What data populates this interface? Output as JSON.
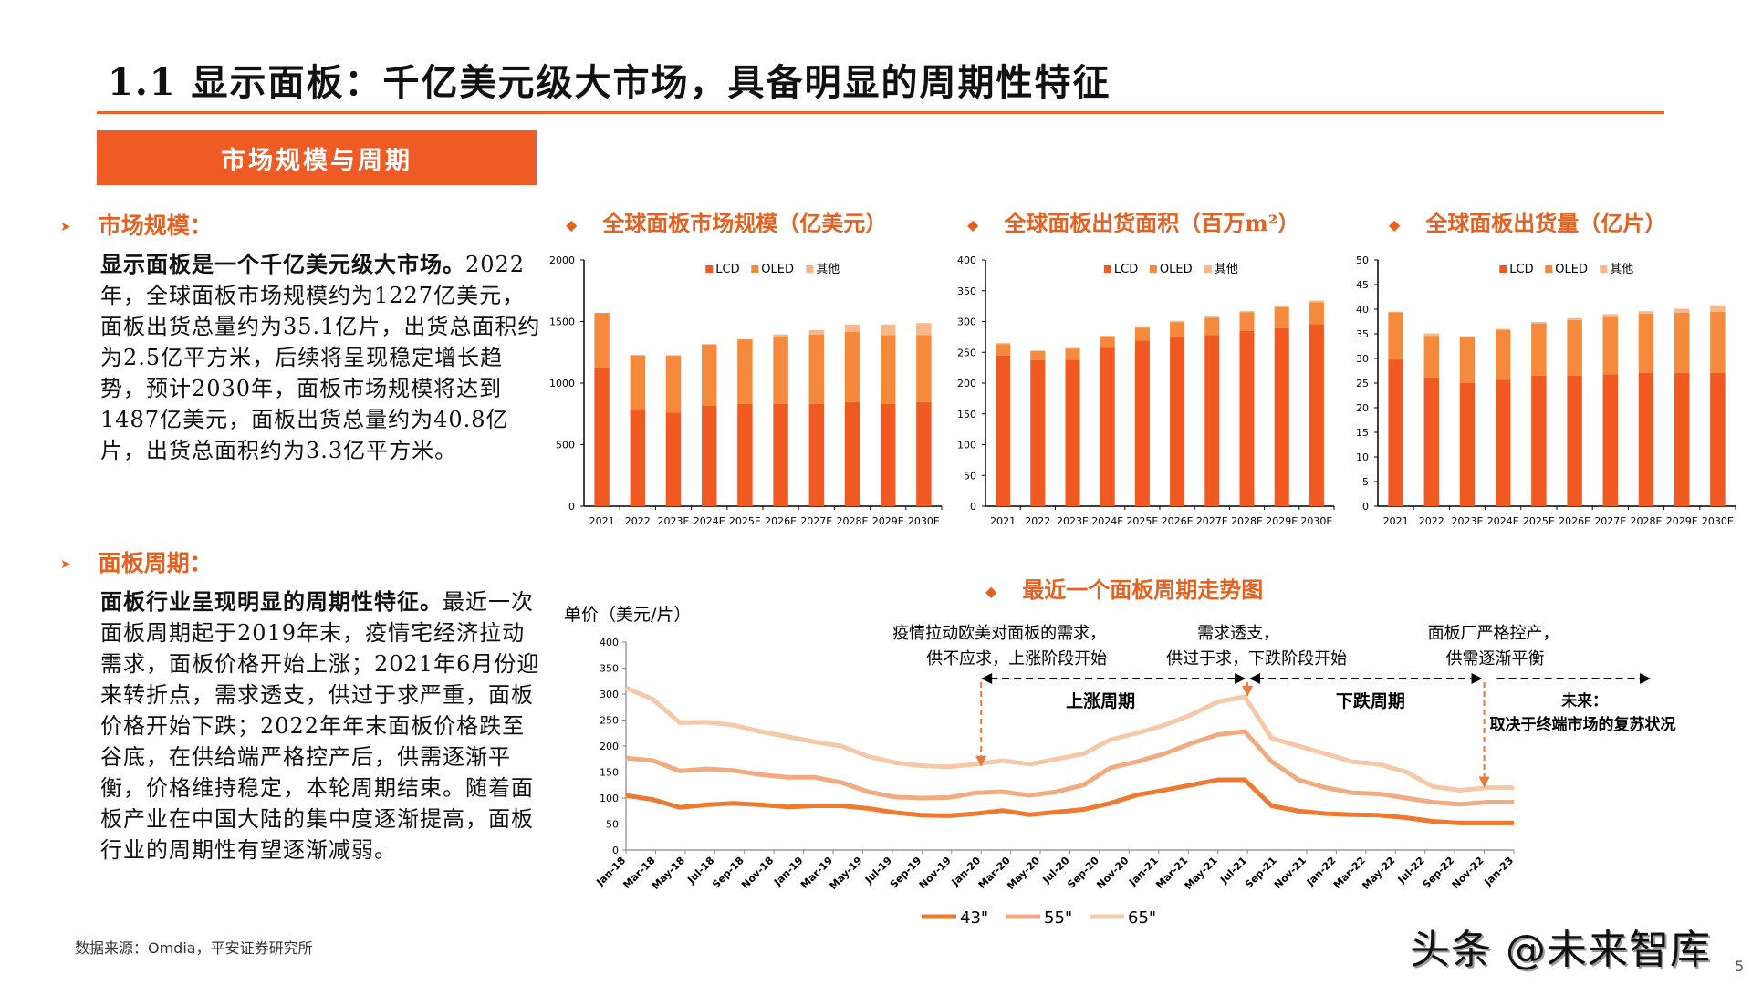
{
  "header": {
    "title": "1.1 显示面板：千亿美元级大市场，具备明显的周期性特征",
    "section_tab": "市场规模与周期"
  },
  "left": {
    "market": {
      "heading": "市场规模：",
      "bold": "显示面板是一个千亿美元级大市场。",
      "body": "2022年，全球面板市场规模约为1227亿美元，面板出货总量约为35.1亿片，出货总面积约为2.5亿平方米，后续将呈现稳定增长趋势，预计2030年，面板市场规模将达到1487亿美元，面板出货总量约为40.8亿片，出货总面积约为3.3亿平方米。"
    },
    "cycle": {
      "heading": "面板周期：",
      "bold": "面板行业呈现明显的周期性特征。",
      "body": "最近一次面板周期起于2019年末，疫情宅经济拉动需求，面板价格开始上涨；2021年6月份迎来转折点，需求透支，供过于求严重，面板价格开始下跌；2022年年末面板价格跌至谷底，在供给端严格控产后，供需逐渐平衡，价格维持稳定，本轮周期结束。随着面板产业在中国大陆的集中度逐渐提高，面板行业的周期性有望逐渐减弱。"
    }
  },
  "colors": {
    "accent": "#ee5b24",
    "lcd": "#f05a22",
    "oled": "#f58a3c",
    "other": "#f8b88a",
    "line43": "#ee7a30",
    "line55": "#f2aa80",
    "line65": "#f6c8a8"
  },
  "chart_data": [
    {
      "type": "bar",
      "stacked": true,
      "title": "全球面板市场规模（亿美元）",
      "categories": [
        "2021",
        "2022",
        "2023E",
        "2024E",
        "2025E",
        "2026E",
        "2027E",
        "2028E",
        "2029E",
        "2030E"
      ],
      "series": [
        {
          "name": "LCD",
          "values": [
            1120,
            790,
            760,
            815,
            830,
            830,
            830,
            845,
            830,
            845
          ]
        },
        {
          "name": "OLED",
          "values": [
            450,
            437,
            465,
            500,
            525,
            545,
            565,
            570,
            560,
            545
          ]
        },
        {
          "name": "其他",
          "values": [
            0,
            0,
            0,
            0,
            0,
            20,
            35,
            60,
            85,
            97
          ]
        }
      ],
      "ylim": [
        0,
        2000
      ],
      "yticks": [
        0,
        500,
        1000,
        1500,
        2000
      ],
      "legend": "top-center"
    },
    {
      "type": "bar",
      "stacked": true,
      "title": "全球面板出货面积（百万m²）",
      "categories": [
        "2021",
        "2022",
        "2023E",
        "2024E",
        "2025E",
        "2026E",
        "2027E",
        "2028E",
        "2029E",
        "2030E"
      ],
      "series": [
        {
          "name": "LCD",
          "values": [
            245,
            237,
            238,
            257,
            269,
            276,
            278,
            285,
            289,
            296
          ]
        },
        {
          "name": "OLED",
          "values": [
            18,
            15,
            18,
            18,
            21,
            23,
            28,
            30,
            34,
            35
          ]
        },
        {
          "name": "其他",
          "values": [
            2,
            1,
            1,
            2,
            2,
            2,
            2,
            2,
            3,
            3
          ]
        }
      ],
      "ylim": [
        0,
        400
      ],
      "yticks": [
        0,
        50,
        100,
        150,
        200,
        250,
        300,
        350,
        400
      ],
      "legend": "top-center"
    },
    {
      "type": "bar",
      "stacked": true,
      "title": "全球面板出货量（亿片）",
      "categories": [
        "2021",
        "2022",
        "2023E",
        "2024E",
        "2025E",
        "2026E",
        "2027E",
        "2028E",
        "2029E",
        "2030E"
      ],
      "series": [
        {
          "name": "LCD",
          "values": [
            29.8,
            26.0,
            25.0,
            25.7,
            26.5,
            26.5,
            26.8,
            27.1,
            27.1,
            27.1
          ]
        },
        {
          "name": "OLED",
          "values": [
            9.6,
            8.6,
            9.4,
            10.1,
            10.6,
            11.3,
            11.6,
            12.0,
            12.2,
            12.4
          ]
        },
        {
          "name": "其他",
          "values": [
            0.1,
            0.5,
            0.1,
            0.2,
            0.3,
            0.4,
            0.6,
            0.5,
            0.8,
            1.3
          ]
        }
      ],
      "ylim": [
        0,
        50
      ],
      "yticks": [
        0,
        5,
        10,
        15,
        20,
        25,
        30,
        35,
        40,
        45,
        50
      ],
      "legend": "top-center"
    },
    {
      "type": "line",
      "title": "最近一个面板周期走势图",
      "ylabel": "单价（美元/片）",
      "ylim": [
        0,
        400
      ],
      "yticks": [
        0,
        50,
        100,
        150,
        200,
        250,
        300,
        350,
        400
      ],
      "x": [
        "Jan-18",
        "Mar-18",
        "May-18",
        "Jul-18",
        "Sep-18",
        "Nov-18",
        "Jan-19",
        "Mar-19",
        "May-19",
        "Jul-19",
        "Sep-19",
        "Nov-19",
        "Jan-20",
        "Mar-20",
        "May-20",
        "Jul-20",
        "Sep-20",
        "Nov-20",
        "Jan-21",
        "Mar-21",
        "May-21",
        "Jul-21",
        "Sep-21",
        "Nov-21",
        "Jan-22",
        "Mar-22",
        "May-22",
        "Jul-22",
        "Sep-22",
        "Nov-22",
        "Jan-23"
      ],
      "series": [
        {
          "name": "43\"",
          "values": [
            105,
            97,
            82,
            87,
            90,
            87,
            83,
            85,
            85,
            80,
            72,
            67,
            66,
            70,
            76,
            68,
            73,
            78,
            90,
            106,
            115,
            125,
            135,
            135,
            85,
            75,
            70,
            68,
            67,
            62,
            55,
            52,
            52,
            52
          ]
        },
        {
          "name": "55\"",
          "values": [
            177,
            172,
            152,
            156,
            153,
            145,
            140,
            140,
            130,
            112,
            102,
            100,
            101,
            110,
            112,
            105,
            112,
            125,
            158,
            170,
            185,
            205,
            222,
            228,
            170,
            135,
            120,
            110,
            108,
            100,
            92,
            88,
            92,
            92
          ]
        },
        {
          "name": "65\"",
          "values": [
            312,
            290,
            245,
            246,
            240,
            228,
            218,
            208,
            200,
            180,
            168,
            162,
            160,
            165,
            172,
            165,
            175,
            185,
            212,
            225,
            240,
            260,
            285,
            295,
            215,
            200,
            185,
            170,
            165,
            150,
            122,
            115,
            120,
            120
          ]
        }
      ],
      "annotations": [
        {
          "text": "疫情拉动欧美对面板的需求，\n供不应求，上涨阶段开始",
          "at": "Jan-20"
        },
        {
          "text": "需求透支，\n供过于求，下跌阶段开始",
          "at": "Jul-21"
        },
        {
          "text": "面板厂严格控产，\n供需逐渐平衡",
          "at": "Nov-22"
        },
        {
          "text": "上涨周期"
        },
        {
          "text": "下跌周期"
        },
        {
          "text": "未来：\n取决于终端市场的复苏状况"
        }
      ],
      "legend": "bottom"
    }
  ],
  "labels": {
    "legend_lcd": "LCD",
    "legend_oled": "OLED",
    "legend_other": "其他",
    "ann1_l1": "疫情拉动欧美对面板的需求，",
    "ann1_l2": "供不应求，上涨阶段开始",
    "ann2_l1": "需求透支，",
    "ann2_l2": "供过于求，下跌阶段开始",
    "ann3_l1": "面板厂严格控产，",
    "ann3_l2": "供需逐渐平衡",
    "rise": "上涨周期",
    "fall": "下跌周期",
    "future_l1": "未来：",
    "future_l2": "取决于终端市场的复苏状况",
    "ylabel": "单价（美元/片）",
    "leg43": "43\"",
    "leg55": "55\"",
    "leg65": "65\""
  },
  "footer": {
    "source": "数据来源：Omdia，平安证券研究所",
    "watermark": "头条 @未来智库",
    "page": "5"
  }
}
